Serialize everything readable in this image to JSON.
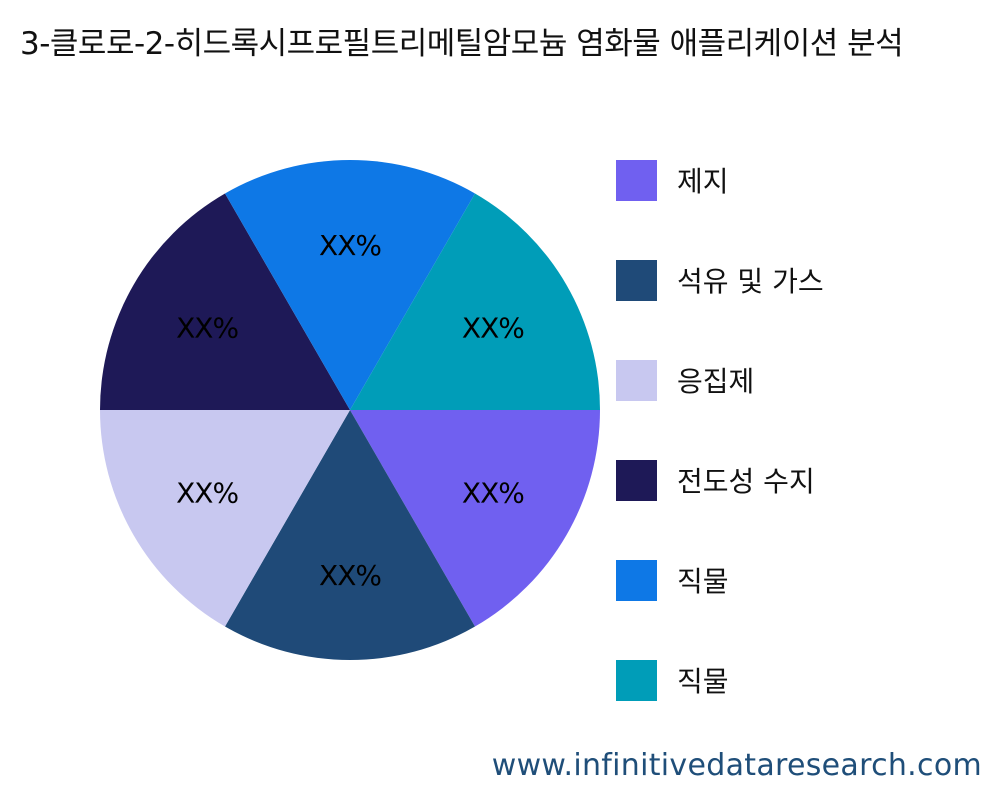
{
  "title": "3-클로로-2-히드록시프로필트리메틸암모늄 염화물 애플리케이션 분석",
  "watermark": "www.infinitivedataresearch.com",
  "chart_data": {
    "type": "pie",
    "title": "3-클로로-2-히드록시프로필트리메틸암모늄 염화물 애플리케이션 분석",
    "slices": [
      {
        "name": "제지",
        "value": 16.67,
        "label": "XX%",
        "color": "#7060f0"
      },
      {
        "name": "석유 및 가스",
        "value": 16.67,
        "label": "XX%",
        "color": "#1f4a78"
      },
      {
        "name": "응집제",
        "value": 16.67,
        "label": "XX%",
        "color": "#c8c8f0"
      },
      {
        "name": "전도성 수지",
        "value": 16.67,
        "label": "XX%",
        "color": "#1e1957"
      },
      {
        "name": "직물",
        "value": 16.67,
        "label": "XX%",
        "color": "#0e78e6"
      },
      {
        "name": "직물",
        "value": 16.67,
        "label": "XX%",
        "color": "#009db8"
      }
    ],
    "legend_position": "right"
  }
}
